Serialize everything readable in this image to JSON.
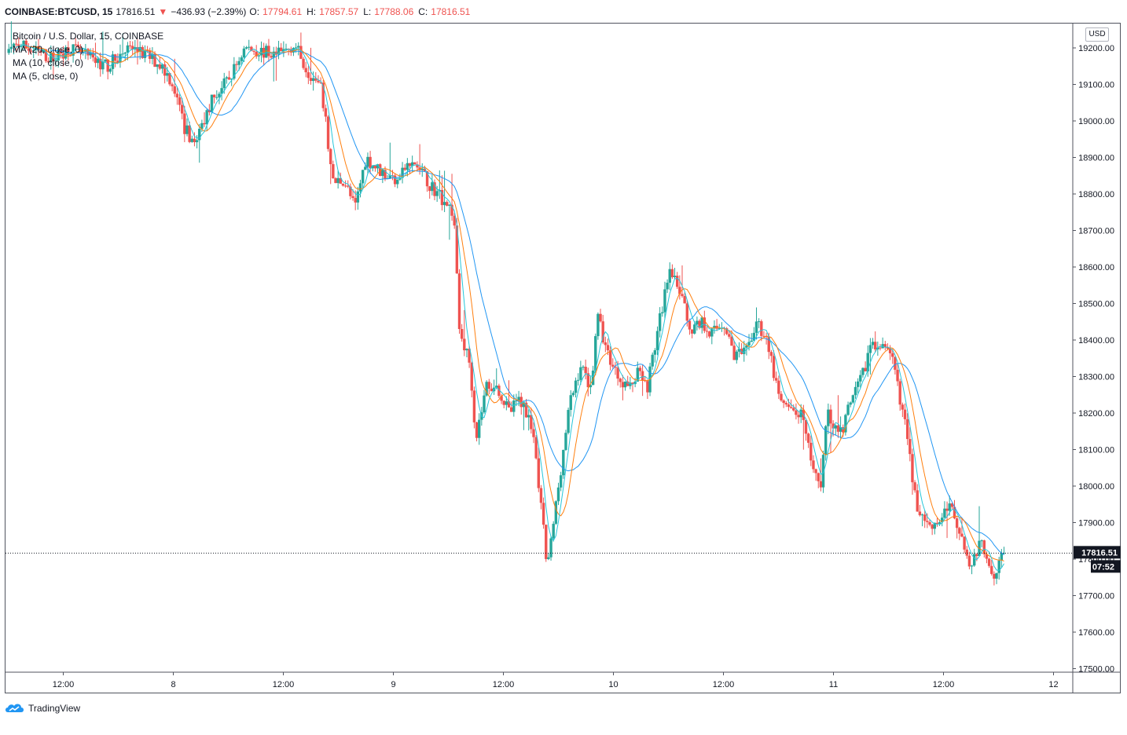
{
  "header": {
    "symbol": "COINBASE:BTCUSD, 15",
    "last": "17816.51",
    "change": "−436.93 (−2.39%)",
    "open_label": "O:",
    "open": "17794.61",
    "high_label": "H:",
    "high": "17857.57",
    "low_label": "L:",
    "low": "17788.06",
    "close_label": "C:",
    "close": "17816.51"
  },
  "legend": {
    "title": "Bitcoin / U.S. Dollar, 15, COINBASE",
    "ma20": "MA (20, close, 0)",
    "ma10": "MA (10, close, 0)",
    "ma5": "MA (5, close, 0)"
  },
  "axis": {
    "currency": "USD",
    "price_label": "17816.51",
    "countdown": "07:52"
  },
  "branding": {
    "name": "TradingView"
  },
  "colors": {
    "up": "#26a69a",
    "down": "#ef5350",
    "ma20": "#2196f3",
    "ma10": "#ff7f0e",
    "ma5": "#26c6da"
  },
  "chart_data": {
    "type": "candlestick",
    "timeframe": "15",
    "ylim": [
      17490,
      19270
    ],
    "y_ticks": [
      17500,
      17600,
      17700,
      17800,
      17900,
      18000,
      18100,
      18200,
      18300,
      18400,
      18500,
      18600,
      18700,
      18800,
      18900,
      19000,
      19100,
      19200
    ],
    "x_ticks": [
      {
        "label": "12:00",
        "t": 1
      },
      {
        "label": "8",
        "t": 2
      },
      {
        "label": "12:00",
        "t": 3
      },
      {
        "label": "9",
        "t": 4
      },
      {
        "label": "12:00",
        "t": 5
      },
      {
        "label": "10",
        "t": 6
      },
      {
        "label": "12:00",
        "t": 7
      },
      {
        "label": "11",
        "t": 8
      },
      {
        "label": "12:00",
        "t": 9
      },
      {
        "label": "12",
        "t": 10
      }
    ],
    "t_start": 0.45,
    "t_end": 10.2,
    "last_t": 9.55,
    "last_price": 17816.51,
    "anchors": [
      [
        0.46,
        19180
      ],
      [
        0.6,
        19210
      ],
      [
        0.75,
        19190
      ],
      [
        0.9,
        19170
      ],
      [
        1.05,
        19200
      ],
      [
        1.25,
        19170
      ],
      [
        1.4,
        19150
      ],
      [
        1.6,
        19200
      ],
      [
        1.75,
        19180
      ],
      [
        1.9,
        19150
      ],
      [
        2.0,
        19100
      ],
      [
        2.1,
        18980
      ],
      [
        2.2,
        18940
      ],
      [
        2.35,
        19060
      ],
      [
        2.5,
        19110
      ],
      [
        2.65,
        19200
      ],
      [
        2.8,
        19190
      ],
      [
        2.95,
        19180
      ],
      [
        3.1,
        19210
      ],
      [
        3.2,
        19150
      ],
      [
        3.35,
        19080
      ],
      [
        3.45,
        18830
      ],
      [
        3.55,
        18840
      ],
      [
        3.65,
        18760
      ],
      [
        3.75,
        18900
      ],
      [
        3.85,
        18870
      ],
      [
        4.0,
        18840
      ],
      [
        4.1,
        18870
      ],
      [
        4.2,
        18880
      ],
      [
        4.35,
        18820
      ],
      [
        4.5,
        18770
      ],
      [
        4.55,
        18740
      ],
      [
        4.6,
        18430
      ],
      [
        4.7,
        18330
      ],
      [
        4.75,
        18130
      ],
      [
        4.85,
        18280
      ],
      [
        4.95,
        18270
      ],
      [
        5.05,
        18200
      ],
      [
        5.15,
        18240
      ],
      [
        5.25,
        18180
      ],
      [
        5.35,
        17920
      ],
      [
        5.4,
        17770
      ],
      [
        5.5,
        18000
      ],
      [
        5.6,
        18220
      ],
      [
        5.7,
        18330
      ],
      [
        5.8,
        18270
      ],
      [
        5.85,
        18470
      ],
      [
        5.95,
        18360
      ],
      [
        6.05,
        18300
      ],
      [
        6.15,
        18270
      ],
      [
        6.25,
        18330
      ],
      [
        6.3,
        18260
      ],
      [
        6.4,
        18420
      ],
      [
        6.5,
        18580
      ],
      [
        6.6,
        18540
      ],
      [
        6.7,
        18430
      ],
      [
        6.8,
        18450
      ],
      [
        6.9,
        18420
      ],
      [
        7.0,
        18450
      ],
      [
        7.1,
        18360
      ],
      [
        7.2,
        18360
      ],
      [
        7.3,
        18450
      ],
      [
        7.4,
        18400
      ],
      [
        7.5,
        18240
      ],
      [
        7.6,
        18200
      ],
      [
        7.7,
        18200
      ],
      [
        7.8,
        18070
      ],
      [
        7.88,
        18000
      ],
      [
        7.95,
        18210
      ],
      [
        8.05,
        18130
      ],
      [
        8.15,
        18220
      ],
      [
        8.25,
        18290
      ],
      [
        8.35,
        18400
      ],
      [
        8.45,
        18380
      ],
      [
        8.55,
        18330
      ],
      [
        8.65,
        18170
      ],
      [
        8.75,
        17950
      ],
      [
        8.85,
        17900
      ],
      [
        8.95,
        17900
      ],
      [
        9.05,
        17950
      ],
      [
        9.15,
        17880
      ],
      [
        9.25,
        17780
      ],
      [
        9.35,
        17850
      ],
      [
        9.45,
        17760
      ],
      [
        9.55,
        17816.51
      ]
    ]
  }
}
